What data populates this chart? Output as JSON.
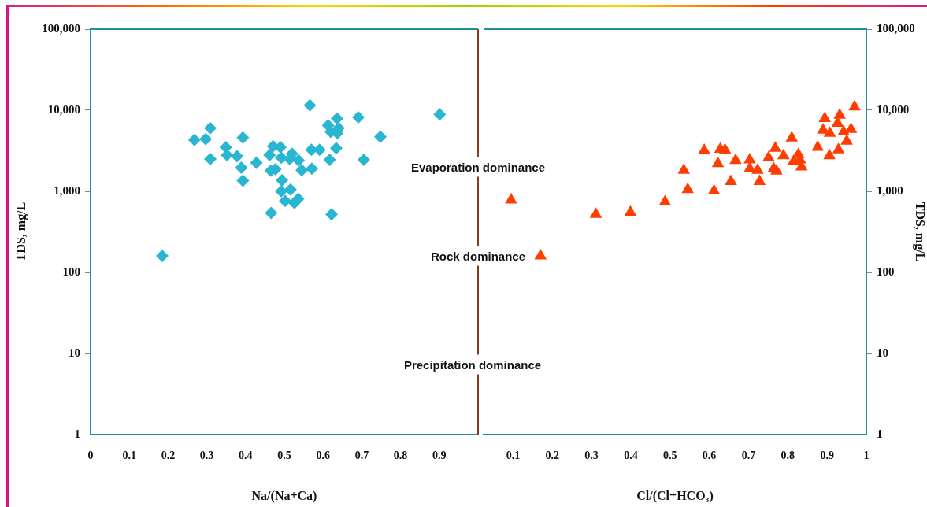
{
  "chart_data": [
    {
      "type": "scatter",
      "xlabel": "Na/(Na+Ca)",
      "ylabel": "TDS, mg/L",
      "xlim": [
        0,
        1
      ],
      "xticks": [
        0,
        0.1,
        0.2,
        0.3,
        0.4,
        0.5,
        0.6,
        0.7,
        0.8,
        0.9
      ],
      "ylim": [
        1,
        100000
      ],
      "yticks": [
        1,
        10,
        100,
        {
          "value": 1000,
          "label": "1,000"
        },
        {
          "value": 10000,
          "label": "10,000"
        },
        {
          "value": 100000,
          "label": "100,000"
        }
      ],
      "log": "y",
      "grid": false,
      "legend": false,
      "marker": "diamond",
      "ref_lines": [
        {
          "axis": "x",
          "value": 1,
          "color": "#8b3a1a"
        }
      ],
      "annotations": [
        "Evaporation dominance",
        "Rock dominance",
        "Precipitation dominance"
      ],
      "series": [
        {
          "color": "#29b6d0",
          "x": [
            0.566,
            0.901,
            0.691,
            0.636,
            0.613,
            0.64,
            0.62,
            0.637,
            0.309,
            0.268,
            0.297,
            0.393,
            0.748,
            0.349,
            0.352,
            0.378,
            0.309,
            0.428,
            0.471,
            0.49,
            0.462,
            0.492,
            0.52,
            0.514,
            0.537,
            0.57,
            0.591,
            0.634,
            0.617,
            0.705,
            0.389,
            0.545,
            0.571,
            0.465,
            0.477,
            0.393,
            0.494,
            0.492,
            0.516,
            0.502,
            0.526,
            0.536,
            0.466,
            0.622,
            0.185
          ],
          "values": [
            11500,
            8900,
            8200,
            7900,
            6500,
            6000,
            5400,
            5200,
            6000,
            4300,
            4400,
            4600,
            4700,
            3500,
            2800,
            2700,
            2500,
            2250,
            3600,
            3500,
            2800,
            2600,
            2900,
            2500,
            2400,
            3250,
            3250,
            3400,
            2450,
            2450,
            1960,
            1820,
            1900,
            1800,
            1870,
            1350,
            1370,
            1000,
            1050,
            760,
            720,
            810,
            540,
            520,
            160
          ]
        }
      ]
    },
    {
      "type": "scatter",
      "xlabel": "Cl/(Cl+HCO₃)",
      "y2label": "TDS, mg/L",
      "xlim": [
        0.025,
        1
      ],
      "xticks": [
        0.1,
        0.2,
        0.3,
        0.4,
        0.5,
        0.6,
        0.7,
        0.8,
        0.9,
        1
      ],
      "y2lim": [
        1,
        100000
      ],
      "y2ticks": [
        1,
        10,
        100,
        {
          "value": 1000,
          "label": "1,000"
        },
        {
          "value": 10000,
          "label": "10,000"
        },
        {
          "value": 100000,
          "label": "100,000"
        }
      ],
      "log": "y2",
      "grid": false,
      "legend": false,
      "marker": "triangle",
      "series": [
        {
          "color": "#ff3d00",
          "axis": "y2",
          "x": [
            0.97,
            0.894,
            0.932,
            0.927,
            0.89,
            0.907,
            0.942,
            0.961,
            0.95,
            0.876,
            0.929,
            0.906,
            0.81,
            0.768,
            0.751,
            0.789,
            0.827,
            0.815,
            0.831,
            0.835,
            0.764,
            0.771,
            0.703,
            0.703,
            0.723,
            0.728,
            0.667,
            0.628,
            0.64,
            0.587,
            0.622,
            0.655,
            0.612,
            0.535,
            0.545,
            0.487,
            0.399,
            0.311,
            0.095,
            0.17
          ],
          "values": [
            11000,
            7900,
            8700,
            6900,
            5700,
            5200,
            5400,
            5800,
            4150,
            3500,
            3250,
            2750,
            4550,
            3400,
            2600,
            2750,
            2850,
            2350,
            2450,
            2000,
            1900,
            1780,
            2450,
            1900,
            1820,
            1320,
            2400,
            3300,
            3240,
            3200,
            2200,
            1320,
            1010,
            1820,
            1050,
            740,
            550,
            520,
            780,
            160
          ]
        }
      ]
    }
  ]
}
